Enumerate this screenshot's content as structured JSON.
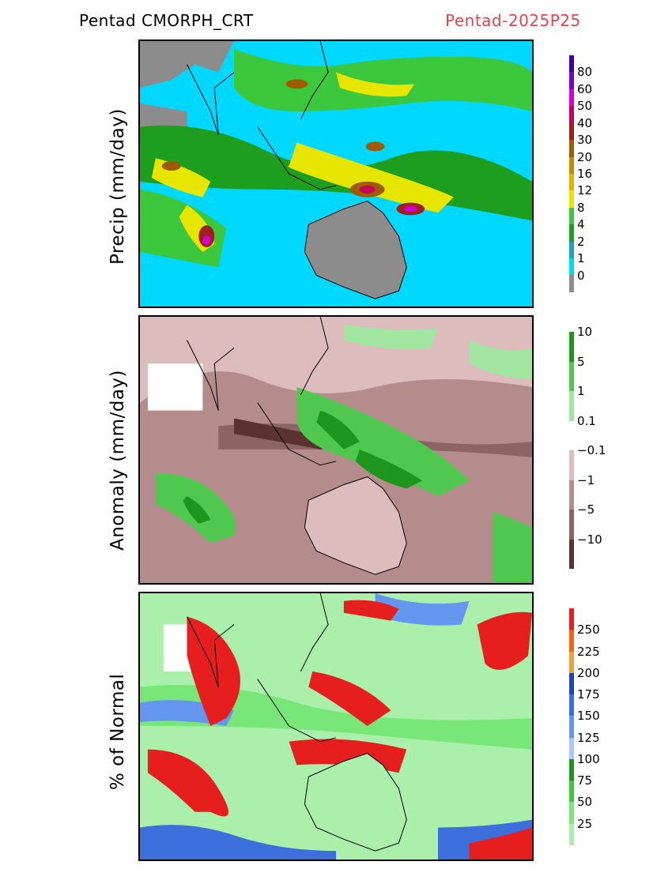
{
  "header": {
    "left_title": "Pentad CMORPH_CRT",
    "right_title": "Pentad-2025P25"
  },
  "panels": [
    {
      "id": "precip",
      "ylabel": "Precip (mm/day)",
      "colorbar": {
        "colors": [
          "#8c8c8c",
          "#00d8ff",
          "#1ea0c8",
          "#1e9e1e",
          "#3cc83c",
          "#e6e600",
          "#e6b400",
          "#c88a00",
          "#a05a00",
          "#a01e1e",
          "#c8005a",
          "#d200d2",
          "#7800c8",
          "#3c00a0"
        ],
        "labels": [
          "0",
          "1",
          "2",
          "4",
          "8",
          "12",
          "16",
          "20",
          "30",
          "40",
          "50",
          "60",
          "80"
        ]
      }
    },
    {
      "id": "anomaly",
      "ylabel": "Anomaly (mm/day)",
      "colorbar": {
        "colors": [
          "#5a3232",
          "#8c6464",
          "#b48c8c",
          "#dcbcbc",
          "#ffffff",
          "#a0e6a0",
          "#50c850",
          "#1e961e"
        ],
        "labels": [
          "−10",
          "−5",
          "−1",
          "−0.1",
          "0.1",
          "1",
          "5",
          "10"
        ]
      }
    },
    {
      "id": "percent",
      "ylabel": "% of Normal",
      "colorbar": {
        "colors": [
          "#aaf0aa",
          "#78e678",
          "#3cc83c",
          "#1e961e",
          "#aac8ff",
          "#6496f0",
          "#3c6edc",
          "#1e46b4",
          "#f0a03c",
          "#f06414",
          "#e61e1e"
        ],
        "labels": [
          "25",
          "50",
          "75",
          "100",
          "125",
          "150",
          "175",
          "200",
          "225",
          "250"
        ]
      }
    }
  ]
}
